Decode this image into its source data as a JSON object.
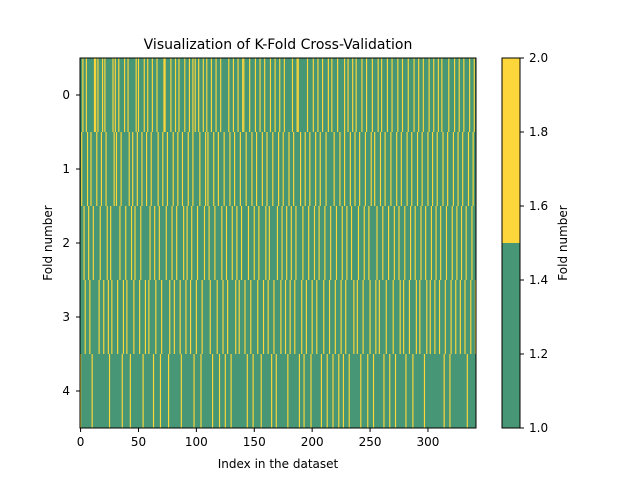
{
  "chart_data": {
    "type": "heatmap",
    "title": "Visualization of K-Fold Cross-Validation",
    "xlabel": "Index in the dataset",
    "ylabel": "Fold number",
    "xlim": [
      -0.5,
      341.5
    ],
    "n_samples": 342,
    "folds": [
      "0",
      "1",
      "2",
      "3",
      "4"
    ],
    "x_ticks": [
      0,
      50,
      100,
      150,
      200,
      250,
      300
    ],
    "colorbar": {
      "label": "Fold number",
      "range": [
        1.0,
        2.0
      ],
      "threshold": 1.5,
      "ticks": [
        "1.0",
        "1.2",
        "1.4",
        "1.6",
        "1.8",
        "2.0"
      ]
    },
    "colors": {
      "value_1": "#479675",
      "value_2": "#fdd63b"
    },
    "highlight_value": 2,
    "base_value": 1,
    "highlight_indices": [
      [
        2,
        5,
        12,
        13,
        15,
        19,
        21,
        28,
        30,
        33,
        38,
        41,
        48,
        50,
        55,
        58,
        62,
        66,
        72,
        73,
        78,
        82,
        85,
        90,
        94,
        97,
        99,
        102,
        106,
        109,
        113,
        117,
        121,
        128,
        132,
        136,
        140,
        141,
        146,
        151,
        155,
        159,
        164,
        168,
        172,
        176,
        183,
        187,
        188,
        196,
        201,
        205,
        209,
        214,
        217,
        222,
        228,
        231,
        235,
        238,
        243,
        247,
        252,
        257,
        260,
        265,
        269,
        274,
        278,
        283,
        288,
        292,
        296,
        301,
        305,
        309,
        312,
        318,
        323,
        327,
        331,
        336,
        340
      ],
      [
        1,
        6,
        9,
        14,
        18,
        22,
        29,
        31,
        35,
        42,
        45,
        49,
        53,
        57,
        61,
        67,
        71,
        75,
        80,
        84,
        88,
        93,
        97,
        103,
        108,
        110,
        115,
        119,
        124,
        129,
        133,
        138,
        143,
        148,
        152,
        157,
        161,
        166,
        171,
        175,
        180,
        184,
        190,
        194,
        198,
        203,
        207,
        212,
        219,
        224,
        228,
        233,
        237,
        241,
        246,
        251,
        254,
        259,
        263,
        268,
        273,
        277,
        282,
        286,
        291,
        295,
        300,
        304,
        308,
        313,
        317,
        322,
        326,
        330,
        335,
        339
      ],
      [
        3,
        7,
        11,
        17,
        23,
        26,
        34,
        39,
        44,
        47,
        52,
        60,
        64,
        68,
        74,
        79,
        83,
        89,
        92,
        96,
        101,
        107,
        111,
        116,
        122,
        126,
        131,
        135,
        139,
        145,
        150,
        154,
        160,
        163,
        170,
        174,
        178,
        182,
        186,
        192,
        197,
        202,
        206,
        211,
        216,
        221,
        226,
        230,
        234,
        240,
        245,
        249,
        256,
        261,
        266,
        271,
        275,
        280,
        285,
        289,
        294,
        298,
        303,
        307,
        311,
        316,
        321,
        325,
        329,
        333,
        338
      ],
      [
        4,
        8,
        16,
        20,
        24,
        27,
        32,
        37,
        40,
        46,
        51,
        56,
        59,
        65,
        70,
        77,
        81,
        86,
        91,
        95,
        100,
        105,
        112,
        118,
        123,
        127,
        134,
        137,
        142,
        147,
        153,
        158,
        162,
        167,
        173,
        177,
        181,
        185,
        191,
        195,
        200,
        204,
        210,
        215,
        220,
        225,
        229,
        236,
        239,
        244,
        250,
        255,
        258,
        264,
        270,
        276,
        279,
        284,
        290,
        293,
        299,
        302,
        306,
        310,
        315,
        320,
        324,
        328,
        332,
        337,
        341
      ],
      [
        0,
        10,
        25,
        36,
        43,
        54,
        63,
        69,
        76,
        87,
        98,
        104,
        114,
        120,
        125,
        130,
        144,
        149,
        156,
        165,
        169,
        179,
        189,
        193,
        199,
        208,
        213,
        218,
        223,
        227,
        232,
        242,
        248,
        253,
        262,
        267,
        272,
        281,
        287,
        297,
        314,
        319,
        334
      ]
    ]
  }
}
